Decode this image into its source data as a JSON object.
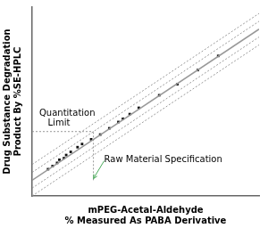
{
  "chart_data": {
    "type": "scatter",
    "xlabel": "mPEG-Acetal-Aldehyde\n% Measured As PABA Derivative",
    "ylabel": "Drug Substance Degradation\nProduct By %SE-HPLC",
    "xlim": [
      0,
      1
    ],
    "ylim": [
      -0.1,
      1.1
    ],
    "tick_labels": false,
    "grid": false,
    "series": [
      {
        "type": "line",
        "color": "#999999",
        "line_style": "dotted",
        "x": [
          0,
          1
        ],
        "values": [
          0.1,
          1.06
        ]
      },
      {
        "type": "line",
        "color": "#999999",
        "line_style": "dotted",
        "x": [
          0,
          1
        ],
        "values": [
          -0.1,
          0.86
        ]
      },
      {
        "type": "line",
        "color": "#999999",
        "line_style": "dotted",
        "x": [
          0,
          1
        ],
        "values": [
          0.05,
          1.01
        ]
      },
      {
        "type": "line",
        "color": "#999999",
        "line_style": "dotted",
        "x": [
          0,
          1
        ],
        "values": [
          -0.05,
          0.91
        ]
      },
      {
        "type": "line",
        "color": "#999999",
        "line_style": "solid",
        "x": [
          0,
          1
        ],
        "values": [
          0,
          0.96
        ]
      },
      {
        "type": "scatter",
        "color": "#111111",
        "marker": "square",
        "x": [
          0.07,
          0.09,
          0.11,
          0.12,
          0.14,
          0.15,
          0.17,
          0.2,
          0.22,
          0.26,
          0.3,
          0.34,
          0.38,
          0.4,
          0.43,
          0.47,
          0.56,
          0.64,
          0.73,
          0.82
        ],
        "values": [
          0.07,
          0.09,
          0.11,
          0.13,
          0.14,
          0.16,
          0.18,
          0.21,
          0.23,
          0.26,
          0.29,
          0.33,
          0.37,
          0.39,
          0.42,
          0.46,
          0.54,
          0.61,
          0.7,
          0.79
        ]
      },
      {
        "type": "line",
        "color": "#999999",
        "line_style": "dotted",
        "x": [
          0.27,
          0.27
        ],
        "values": [
          0,
          0.3092
        ]
      },
      {
        "type": "line",
        "color": "#999999",
        "line_style": "dotted",
        "x": [
          0,
          0.27
        ],
        "values": [
          0.3092,
          0.3092
        ]
      }
    ],
    "annotations": [
      {
        "text": "Quantitation\n   Limit",
        "y": 0.3092
      },
      {
        "text": "Raw Material Specification",
        "x": 0.27,
        "y": 0.01,
        "color": "#4aaa5a"
      }
    ]
  }
}
